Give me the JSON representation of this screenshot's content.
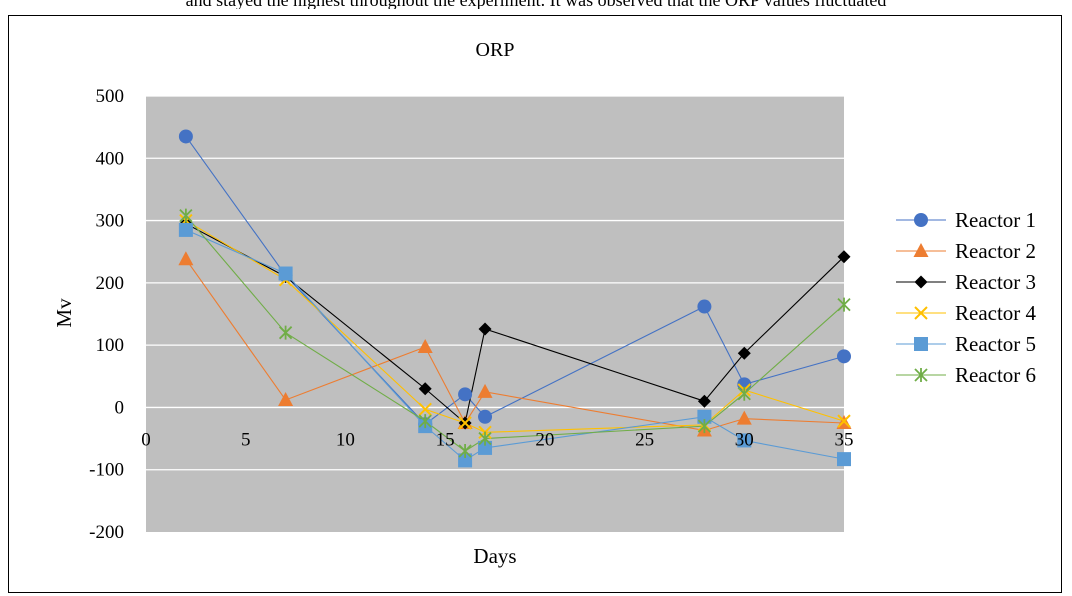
{
  "page": {
    "top_text": "and stayed the highest throughout the experiment. It was observed that the ORP values fluctuated"
  },
  "chart_data": {
    "type": "line",
    "title": "ORP",
    "xlabel": "Days",
    "ylabel": "Mv",
    "xlim": [
      0,
      35
    ],
    "ylim": [
      -200,
      500
    ],
    "x_ticks": [
      "0",
      "5",
      "10",
      "15",
      "20",
      "25",
      "30",
      "35"
    ],
    "y_ticks": [
      "500",
      "400",
      "300",
      "200",
      "100",
      "0",
      "-100",
      "-200"
    ],
    "grid": "horizontal",
    "plot_background": "#BFBFBF",
    "legend_position": "right",
    "x": [
      2,
      7,
      14,
      16,
      17,
      28,
      30,
      35
    ],
    "series": [
      {
        "name": "Reactor 1",
        "color": "#4472C4",
        "marker": "circle",
        "values": [
          435,
          212,
          -27,
          21,
          -15,
          162,
          37,
          82
        ]
      },
      {
        "name": "Reactor 2",
        "color": "#ED7D31",
        "marker": "triangle",
        "values": [
          238,
          12,
          97,
          -25,
          25,
          -37,
          -18,
          -25
        ]
      },
      {
        "name": "Reactor 3",
        "color": "#000000",
        "marker": "diamond",
        "values": [
          295,
          210,
          30,
          -25,
          126,
          10,
          87,
          242
        ]
      },
      {
        "name": "Reactor 4",
        "color": "#FFC000",
        "marker": "x",
        "values": [
          300,
          205,
          -3,
          -25,
          -40,
          -28,
          28,
          -22
        ]
      },
      {
        "name": "Reactor 5",
        "color": "#5B9BD5",
        "marker": "square",
        "values": [
          285,
          215,
          -30,
          -85,
          -65,
          -15,
          -53,
          -83
        ]
      },
      {
        "name": "Reactor 6",
        "color": "#70AD47",
        "marker": "star",
        "values": [
          308,
          120,
          -22,
          -70,
          -50,
          -30,
          22,
          165
        ]
      }
    ]
  }
}
